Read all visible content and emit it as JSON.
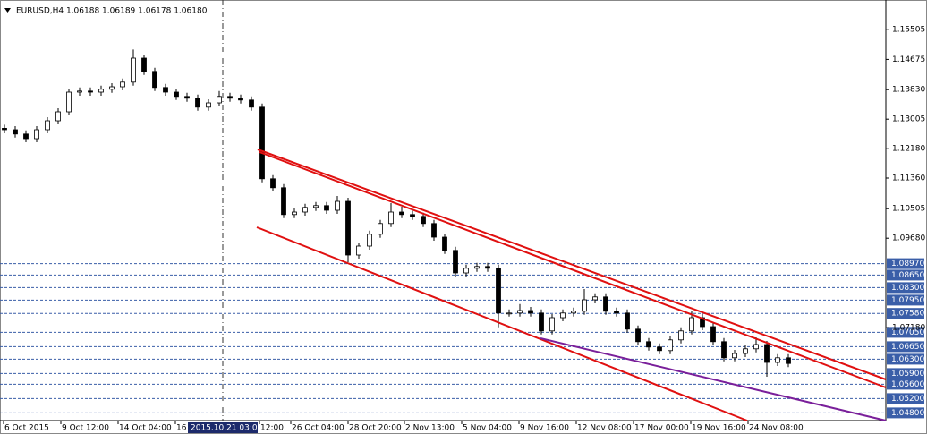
{
  "chart_data": {
    "type": "candlestick",
    "title": "EURUSD,H4  1.06188 1.06189 1.06178 1.06180",
    "ylim": [
      1.04585,
      1.16335
    ],
    "yticks": [
      1.15505,
      1.14675,
      {
        "value": 1.1383,
        "label": "1.13830"
      },
      1.13005,
      {
        "value": 1.1218,
        "label": "1.12180"
      },
      {
        "value": 1.1136,
        "label": "1.11360"
      },
      1.10505,
      {
        "value": 1.0968,
        "label": "1.09680"
      },
      {
        "value": 1.0718,
        "label": "1.07180"
      }
    ],
    "levels": [
      {
        "value": 1.0897,
        "label": "1.08970"
      },
      {
        "value": 1.0865,
        "label": "1.08650"
      },
      {
        "value": 1.083,
        "label": "1.08300"
      },
      {
        "value": 1.0795,
        "label": "1.07950"
      },
      {
        "value": 1.0758,
        "label": "1.07580"
      },
      {
        "value": 1.0705,
        "label": "1.07050"
      },
      {
        "value": 1.0665,
        "label": "1.06650"
      },
      {
        "value": 1.063,
        "label": "1.06300"
      },
      {
        "value": 1.059,
        "label": "1.05900"
      },
      {
        "value": 1.056,
        "label": "1.05600"
      },
      {
        "value": 1.052,
        "label": "1.05200"
      },
      {
        "value": 1.048,
        "label": "1.04800"
      }
    ],
    "x_labels": [
      "6 Oct 2015",
      "9 Oct 12:00",
      "14 Oct 04:00",
      "16",
      "12:00",
      "26 Oct 04:00",
      "28 Oct 20:00",
      "2 Nov 13:00",
      "5 Nov 04:00",
      "9 Nov 16:00",
      "12 Nov 08:00",
      "17 Nov 00:00",
      "19 Nov 16:00",
      "24 Nov 08:00"
    ],
    "crosshair_time": "2015.10.21 03:00",
    "open": [
      1.1275,
      1.1271,
      1.1259,
      1.1246,
      1.1271,
      1.1296,
      1.1321,
      1.1376,
      1.1379,
      1.1376,
      1.1384,
      1.1391,
      1.1404,
      1.1471,
      1.1434,
      1.1389,
      1.1376,
      1.1364,
      1.1359,
      1.1334,
      1.1346,
      1.1364,
      1.1359,
      1.1354,
      1.1334,
      1.1134,
      1.1109,
      1.1034,
      1.1041,
      1.1054,
      1.1059,
      1.1046,
      1.1071,
      1.0921,
      1.0946,
      1.0979,
      1.1009,
      1.1041,
      1.1034,
      1.1029,
      1.1009,
      1.0971,
      1.0934,
      1.0871,
      1.0884,
      1.0889,
      1.0884,
      1.0759,
      1.0759,
      1.0766,
      1.0759,
      1.0709,
      1.0746,
      1.0759,
      1.0764,
      1.0796,
      1.0804,
      1.0764,
      1.0759,
      1.0714,
      1.0679,
      1.0664,
      1.0654,
      1.0684,
      1.0709,
      1.0746,
      1.0721,
      1.0679,
      1.0634,
      1.0646,
      1.0659,
      1.0671,
      1.0621,
      1.0634
    ],
    "high": [
      1.1285,
      1.1281,
      1.1269,
      1.1281,
      1.1306,
      1.1331,
      1.1386,
      1.1389,
      1.1389,
      1.1394,
      1.1401,
      1.1414,
      1.1495,
      1.1481,
      1.1444,
      1.1399,
      1.1386,
      1.1374,
      1.1369,
      1.1356,
      1.1379,
      1.1374,
      1.1369,
      1.1364,
      1.1344,
      1.1144,
      1.1119,
      1.1051,
      1.1064,
      1.1069,
      1.1069,
      1.1086,
      1.1081,
      1.0956,
      1.0989,
      1.1019,
      1.1066,
      1.1056,
      1.1044,
      1.1039,
      1.1019,
      1.0981,
      1.0944,
      1.0894,
      1.0899,
      1.0899,
      1.0894,
      1.0769,
      1.0784,
      1.0776,
      1.0769,
      1.0756,
      1.0769,
      1.0774,
      1.0826,
      1.0814,
      1.0814,
      1.0774,
      1.0769,
      1.0724,
      1.0689,
      1.0674,
      1.0694,
      1.0719,
      1.0766,
      1.0756,
      1.0731,
      1.0689,
      1.0656,
      1.0669,
      1.0691,
      1.0681,
      1.0644,
      1.0644
    ],
    "low": [
      1.1261,
      1.1249,
      1.1236,
      1.1236,
      1.1261,
      1.1286,
      1.1311,
      1.1366,
      1.1366,
      1.1366,
      1.1374,
      1.1381,
      1.1394,
      1.1424,
      1.1379,
      1.1366,
      1.1354,
      1.1349,
      1.1324,
      1.1324,
      1.1336,
      1.1349,
      1.1344,
      1.1324,
      1.1124,
      1.1099,
      1.1024,
      1.1024,
      1.1031,
      1.1044,
      1.1036,
      1.1036,
      1.0901,
      1.0911,
      1.0936,
      1.0969,
      1.0999,
      1.1024,
      1.1019,
      1.0999,
      1.0961,
      1.0924,
      1.0861,
      1.0861,
      1.0874,
      1.0874,
      1.0719,
      1.0749,
      1.0749,
      1.0749,
      1.0699,
      1.0699,
      1.0736,
      1.0749,
      1.0754,
      1.0786,
      1.0754,
      1.0749,
      1.0704,
      1.0669,
      1.0654,
      1.0644,
      1.0644,
      1.0674,
      1.0699,
      1.0711,
      1.0669,
      1.0624,
      1.0624,
      1.0636,
      1.0649,
      1.0581,
      1.0611,
      1.0608
    ],
    "close": [
      1.1271,
      1.1259,
      1.1246,
      1.1271,
      1.1296,
      1.1321,
      1.1376,
      1.1379,
      1.1376,
      1.1384,
      1.1391,
      1.1404,
      1.1471,
      1.1434,
      1.1389,
      1.1376,
      1.1364,
      1.1359,
      1.1334,
      1.1346,
      1.1364,
      1.1359,
      1.1354,
      1.1334,
      1.1134,
      1.1109,
      1.1034,
      1.1041,
      1.1054,
      1.1059,
      1.1046,
      1.1071,
      1.0921,
      1.0946,
      1.0979,
      1.1009,
      1.1041,
      1.1034,
      1.1029,
      1.1009,
      1.0971,
      1.0934,
      1.0871,
      1.0884,
      1.0889,
      1.0884,
      1.0759,
      1.0759,
      1.0766,
      1.0759,
      1.0709,
      1.0746,
      1.0759,
      1.0764,
      1.0796,
      1.0804,
      1.0764,
      1.0759,
      1.0714,
      1.0679,
      1.0664,
      1.0654,
      1.0684,
      1.0709,
      1.0746,
      1.0721,
      1.0679,
      1.0634,
      1.0646,
      1.0659,
      1.0671,
      1.0621,
      1.0634,
      1.0618
    ],
    "level_color": "#3a5ea8",
    "grid": false
  }
}
